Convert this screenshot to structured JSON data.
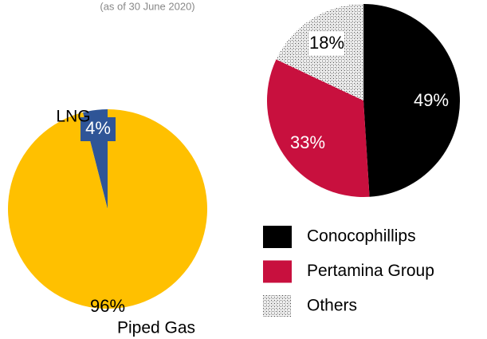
{
  "chart_data": [
    {
      "type": "pie",
      "subtitle": "(as of 30 June 2020)",
      "categories": [
        "LNG",
        "Piped Gas"
      ],
      "values": [
        4,
        96
      ],
      "value_labels": [
        "4%",
        "96%"
      ],
      "colors": [
        "#2f5597",
        "#ffc000"
      ]
    },
    {
      "type": "pie",
      "categories": [
        "Conocophillips",
        "Pertamina Group",
        "Others"
      ],
      "values": [
        49,
        33,
        18
      ],
      "value_labels": [
        "49%",
        "33%",
        "18%"
      ],
      "colors": [
        "#000000",
        "#c8103e",
        "hatch"
      ],
      "legend": true
    }
  ]
}
